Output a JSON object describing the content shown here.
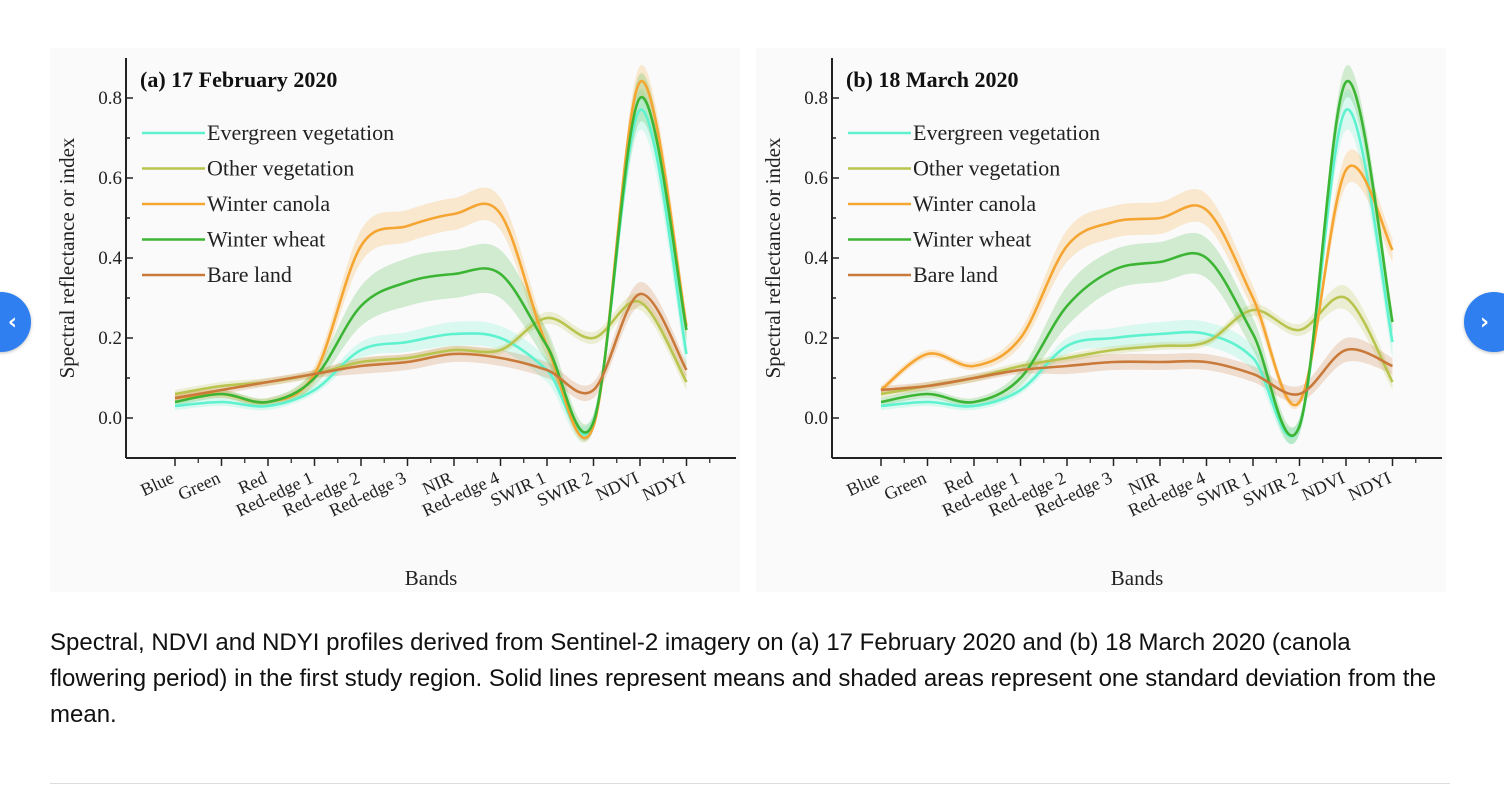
{
  "navigation": {
    "prev_label": "‹",
    "next_label": "›",
    "prev_icon": "chevron-left-icon",
    "next_icon": "chevron-right-icon"
  },
  "caption": "Spectral, NDVI and NDYI profiles derived from Sentinel-2 imagery on (a) 17 February 2020 and (b) 18 March 2020 (canola flowering period) in the first study region. Solid lines represent means and shaded areas represent one standard deviation from the mean.",
  "chart_data": [
    {
      "type": "line",
      "title": "(a) 17 February 2020",
      "xlabel": "Bands",
      "ylabel": "Spectral reflectance or index",
      "categories": [
        "Blue",
        "Green",
        "Red",
        "Red-edge 1",
        "Red-edge 2",
        "Red-edge 3",
        "NIR",
        "Red-edge 4",
        "SWIR 1",
        "SWIR 2",
        "NDVI",
        "NDYI"
      ],
      "ylim": [
        -0.1,
        0.9
      ],
      "yticks": [
        "0.0",
        "0.2",
        "0.4",
        "0.6",
        "0.8"
      ],
      "legend_position": "top-left",
      "series": [
        {
          "name": "Evergreen vegetation",
          "color": "#5ef2cf",
          "values": [
            0.03,
            0.04,
            0.03,
            0.07,
            0.17,
            0.19,
            0.21,
            0.2,
            0.12,
            -0.01,
            0.77,
            0.16
          ],
          "std": [
            0.01,
            0.01,
            0.01,
            0.01,
            0.02,
            0.025,
            0.03,
            0.03,
            0.03,
            0.02,
            0.05,
            0.04
          ]
        },
        {
          "name": "Other vegetation",
          "color": "#b9c44e",
          "values": [
            0.06,
            0.08,
            0.09,
            0.11,
            0.14,
            0.15,
            0.17,
            0.17,
            0.25,
            0.2,
            0.29,
            0.09
          ],
          "std": [
            0.01,
            0.01,
            0.01,
            0.01,
            0.01,
            0.01,
            0.01,
            0.01,
            0.015,
            0.015,
            0.02,
            0.02
          ]
        },
        {
          "name": "Winter canola",
          "color": "#f5a531",
          "values": [
            0.05,
            0.06,
            0.04,
            0.11,
            0.43,
            0.48,
            0.51,
            0.51,
            0.18,
            -0.02,
            0.84,
            0.23
          ],
          "std": [
            0.01,
            0.01,
            0.01,
            0.02,
            0.04,
            0.04,
            0.04,
            0.04,
            0.03,
            0.01,
            0.04,
            0.03
          ]
        },
        {
          "name": "Winter wheat",
          "color": "#3cb535",
          "values": [
            0.04,
            0.06,
            0.04,
            0.1,
            0.28,
            0.34,
            0.36,
            0.36,
            0.18,
            -0.01,
            0.8,
            0.22
          ],
          "std": [
            0.01,
            0.01,
            0.01,
            0.02,
            0.05,
            0.06,
            0.06,
            0.06,
            0.04,
            0.02,
            0.06,
            0.03
          ]
        },
        {
          "name": "Bare land",
          "color": "#c97a3a",
          "values": [
            0.05,
            0.07,
            0.09,
            0.11,
            0.13,
            0.14,
            0.16,
            0.15,
            0.12,
            0.07,
            0.31,
            0.12
          ],
          "std": [
            0.01,
            0.01,
            0.01,
            0.01,
            0.02,
            0.02,
            0.02,
            0.02,
            0.02,
            0.02,
            0.03,
            0.02
          ]
        }
      ]
    },
    {
      "type": "line",
      "title": "(b) 18 March 2020",
      "xlabel": "Bands",
      "ylabel": "Spectral reflectance or index",
      "categories": [
        "Blue",
        "Green",
        "Red",
        "Red-edge 1",
        "Red-edge 2",
        "Red-edge 3",
        "NIR",
        "Red-edge 4",
        "SWIR 1",
        "SWIR 2",
        "NDVI",
        "NDYI"
      ],
      "ylim": [
        -0.1,
        0.9
      ],
      "yticks": [
        "0.0",
        "0.2",
        "0.4",
        "0.6",
        "0.8"
      ],
      "legend_position": "top-left",
      "series": [
        {
          "name": "Evergreen vegetation",
          "color": "#5ef2cf",
          "values": [
            0.03,
            0.04,
            0.03,
            0.07,
            0.18,
            0.2,
            0.21,
            0.21,
            0.15,
            -0.02,
            0.77,
            0.19
          ],
          "std": [
            0.01,
            0.01,
            0.01,
            0.01,
            0.02,
            0.025,
            0.03,
            0.03,
            0.03,
            0.02,
            0.05,
            0.04
          ]
        },
        {
          "name": "Other vegetation",
          "color": "#b9c44e",
          "values": [
            0.06,
            0.08,
            0.1,
            0.13,
            0.15,
            0.17,
            0.18,
            0.19,
            0.27,
            0.22,
            0.3,
            0.09
          ],
          "std": [
            0.01,
            0.01,
            0.01,
            0.01,
            0.01,
            0.01,
            0.01,
            0.01,
            0.015,
            0.015,
            0.03,
            0.02
          ]
        },
        {
          "name": "Winter canola",
          "color": "#f5a531",
          "values": [
            0.07,
            0.16,
            0.13,
            0.2,
            0.43,
            0.49,
            0.5,
            0.52,
            0.3,
            0.04,
            0.62,
            0.42
          ],
          "std": [
            0.01,
            0.01,
            0.01,
            0.02,
            0.04,
            0.04,
            0.04,
            0.04,
            0.03,
            0.01,
            0.04,
            0.03
          ]
        },
        {
          "name": "Winter wheat",
          "color": "#3cb535",
          "values": [
            0.04,
            0.06,
            0.04,
            0.1,
            0.28,
            0.37,
            0.39,
            0.4,
            0.21,
            -0.02,
            0.84,
            0.24
          ],
          "std": [
            0.01,
            0.01,
            0.01,
            0.02,
            0.05,
            0.05,
            0.05,
            0.05,
            0.04,
            0.02,
            0.04,
            0.03
          ]
        },
        {
          "name": "Bare land",
          "color": "#c97a3a",
          "values": [
            0.07,
            0.08,
            0.1,
            0.12,
            0.13,
            0.14,
            0.14,
            0.14,
            0.11,
            0.06,
            0.17,
            0.13
          ],
          "std": [
            0.01,
            0.01,
            0.01,
            0.01,
            0.02,
            0.02,
            0.02,
            0.02,
            0.02,
            0.02,
            0.03,
            0.02
          ]
        }
      ]
    }
  ]
}
